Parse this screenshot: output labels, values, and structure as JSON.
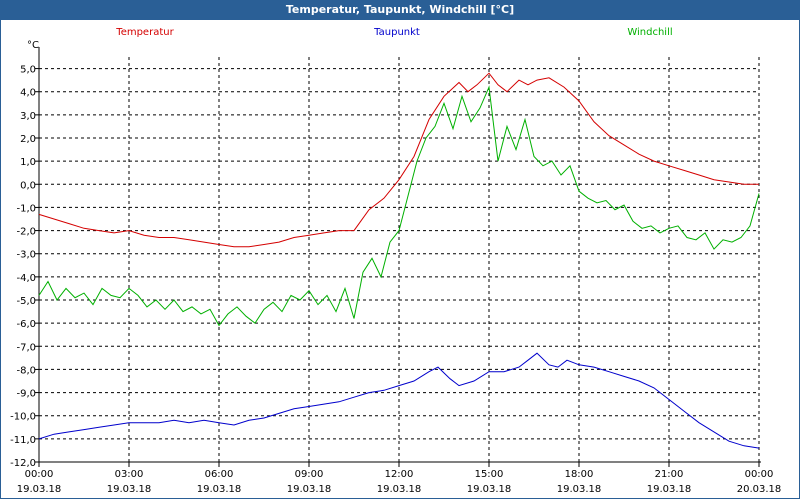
{
  "window": {
    "title": "Temperatur, Taupunkt, Windchill [°C]"
  },
  "chart_data": {
    "type": "line",
    "unit": "°C",
    "ylim": [
      -12.0,
      5.5
    ],
    "yticks": [
      5.0,
      4.0,
      3.0,
      2.0,
      1.0,
      0.0,
      -1.0,
      -2.0,
      -3.0,
      -4.0,
      -5.0,
      -6.0,
      -7.0,
      -8.0,
      -9.0,
      -10.0,
      -11.0,
      -12.0
    ],
    "ytick_labels": [
      "5,0",
      "4,0",
      "3,0",
      "2,0",
      "1,0",
      "0,0",
      "-1,0",
      "-2,0",
      "-3,0",
      "-4,0",
      "-5,0",
      "-6,0",
      "-7,0",
      "-8,0",
      "-9,0",
      "-10,0",
      "-11,0",
      "-12,0"
    ],
    "xlim": [
      0,
      24
    ],
    "xticks": [
      {
        "x": 0,
        "time": "00:00",
        "date": "19.03.18"
      },
      {
        "x": 3,
        "time": "03:00",
        "date": "19.03.18"
      },
      {
        "x": 6,
        "time": "06:00",
        "date": "19.03.18"
      },
      {
        "x": 9,
        "time": "09:00",
        "date": "19.03.18"
      },
      {
        "x": 12,
        "time": "12:00",
        "date": "19.03.18"
      },
      {
        "x": 15,
        "time": "15:00",
        "date": "19.03.18"
      },
      {
        "x": 18,
        "time": "18:00",
        "date": "19.03.18"
      },
      {
        "x": 21,
        "time": "21:00",
        "date": "19.03.18"
      },
      {
        "x": 24,
        "time": "00:00",
        "date": "20.03.18"
      }
    ],
    "grid": true,
    "series": [
      {
        "name": "Temperatur",
        "color": "#d40000",
        "x": [
          0,
          0.5,
          1,
          1.5,
          2,
          2.5,
          3,
          3.5,
          4,
          4.5,
          5,
          5.5,
          6,
          6.5,
          7,
          7.5,
          8,
          8.5,
          9,
          9.5,
          10,
          10.5,
          11,
          11.5,
          12,
          12.5,
          13,
          13.5,
          14,
          14.3,
          14.6,
          15,
          15.3,
          15.6,
          16,
          16.3,
          16.6,
          17,
          17.5,
          18,
          18.5,
          19,
          19.5,
          20,
          20.5,
          21,
          21.5,
          22,
          22.5,
          23,
          23.5,
          24
        ],
        "values": [
          -1.3,
          -1.5,
          -1.7,
          -1.9,
          -2.0,
          -2.1,
          -2.0,
          -2.2,
          -2.3,
          -2.3,
          -2.4,
          -2.5,
          -2.6,
          -2.7,
          -2.7,
          -2.6,
          -2.5,
          -2.3,
          -2.2,
          -2.1,
          -2.0,
          -2.0,
          -1.1,
          -0.6,
          0.2,
          1.2,
          2.8,
          3.8,
          4.4,
          4.0,
          4.3,
          4.8,
          4.3,
          4.0,
          4.5,
          4.3,
          4.5,
          4.6,
          4.2,
          3.6,
          2.7,
          2.1,
          1.7,
          1.3,
          1.0,
          0.8,
          0.6,
          0.4,
          0.2,
          0.1,
          0.0,
          0.0
        ]
      },
      {
        "name": "Taupunkt",
        "color": "#0000cc",
        "x": [
          0,
          0.5,
          1,
          1.5,
          2,
          2.5,
          3,
          3.5,
          4,
          4.5,
          5,
          5.5,
          6,
          6.5,
          7,
          7.5,
          8,
          8.5,
          9,
          9.5,
          10,
          10.5,
          11,
          11.5,
          12,
          12.5,
          13,
          13.3,
          13.7,
          14,
          14.5,
          15,
          15.5,
          16,
          16.3,
          16.6,
          17,
          17.3,
          17.6,
          18,
          18.5,
          19,
          19.5,
          20,
          20.5,
          21,
          21.5,
          22,
          22.5,
          23,
          23.5,
          24
        ],
        "values": [
          -11.0,
          -10.8,
          -10.7,
          -10.6,
          -10.5,
          -10.4,
          -10.3,
          -10.3,
          -10.3,
          -10.2,
          -10.3,
          -10.2,
          -10.3,
          -10.4,
          -10.2,
          -10.1,
          -9.9,
          -9.7,
          -9.6,
          -9.5,
          -9.4,
          -9.2,
          -9.0,
          -8.9,
          -8.7,
          -8.5,
          -8.1,
          -7.9,
          -8.4,
          -8.7,
          -8.5,
          -8.1,
          -8.1,
          -7.9,
          -7.6,
          -7.3,
          -7.8,
          -7.9,
          -7.6,
          -7.8,
          -7.9,
          -8.1,
          -8.3,
          -8.5,
          -8.8,
          -9.3,
          -9.8,
          -10.3,
          -10.7,
          -11.1,
          -11.3,
          -11.4
        ]
      },
      {
        "name": "Windchill",
        "color": "#00b000",
        "x": [
          0,
          0.3,
          0.6,
          0.9,
          1.2,
          1.5,
          1.8,
          2.1,
          2.4,
          2.7,
          3,
          3.3,
          3.6,
          3.9,
          4.2,
          4.5,
          4.8,
          5.1,
          5.4,
          5.7,
          6,
          6.3,
          6.6,
          6.9,
          7.2,
          7.5,
          7.8,
          8.1,
          8.4,
          8.7,
          9,
          9.3,
          9.6,
          9.9,
          10.2,
          10.5,
          10.8,
          11.1,
          11.4,
          11.7,
          12,
          12.3,
          12.6,
          12.9,
          13.2,
          13.5,
          13.8,
          14.1,
          14.4,
          14.7,
          15,
          15.3,
          15.6,
          15.9,
          16.2,
          16.5,
          16.8,
          17.1,
          17.4,
          17.7,
          18,
          18.3,
          18.6,
          18.9,
          19.2,
          19.5,
          19.8,
          20.1,
          20.4,
          20.7,
          21,
          21.3,
          21.6,
          21.9,
          22.2,
          22.5,
          22.8,
          23.1,
          23.4,
          23.7,
          24
        ],
        "values": [
          -4.8,
          -4.2,
          -5.0,
          -4.5,
          -4.9,
          -4.7,
          -5.2,
          -4.5,
          -4.8,
          -4.9,
          -4.5,
          -4.8,
          -5.3,
          -5.0,
          -5.4,
          -5.0,
          -5.5,
          -5.3,
          -5.6,
          -5.4,
          -6.1,
          -5.6,
          -5.3,
          -5.7,
          -6.0,
          -5.4,
          -5.1,
          -5.5,
          -4.8,
          -5.0,
          -4.6,
          -5.2,
          -4.8,
          -5.5,
          -4.5,
          -5.8,
          -3.8,
          -3.2,
          -4.0,
          -2.5,
          -2.0,
          -0.5,
          1.0,
          2.0,
          2.5,
          3.5,
          2.4,
          3.8,
          2.7,
          3.3,
          4.2,
          1.0,
          2.5,
          1.5,
          2.8,
          1.2,
          0.8,
          1.0,
          0.4,
          0.8,
          -0.3,
          -0.6,
          -0.8,
          -0.7,
          -1.1,
          -0.9,
          -1.6,
          -1.9,
          -1.8,
          -2.1,
          -1.9,
          -1.8,
          -2.3,
          -2.4,
          -2.1,
          -2.8,
          -2.4,
          -2.5,
          -2.3,
          -1.8,
          -0.4
        ]
      }
    ]
  }
}
